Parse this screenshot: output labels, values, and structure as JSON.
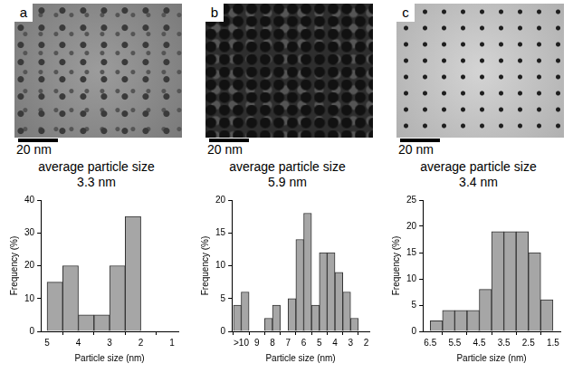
{
  "panels": [
    {
      "label": "a",
      "scale_bar": "20 nm",
      "caption": "average particle size",
      "average_size": "3.3 nm"
    },
    {
      "label": "b",
      "scale_bar": "20 nm",
      "caption": "average particle size",
      "average_size": "5.9 nm"
    },
    {
      "label": "c",
      "scale_bar": "20 nm",
      "caption": "average particle size",
      "average_size": "3.4 nm"
    }
  ],
  "chart_data": [
    {
      "type": "histogram",
      "x_label": "Particle size (nm)",
      "y_label": "Frequency (%)",
      "bins": [
        5,
        4.5,
        4,
        3.5,
        3,
        2.5,
        2
      ],
      "values": [
        15,
        20,
        5,
        5,
        20,
        35
      ],
      "color": "#a6a6a6",
      "grid": false,
      "xlim": [
        5.2,
        0.8
      ],
      "xticks": [
        5,
        4,
        3,
        2,
        1
      ],
      "ylim": [
        0,
        40
      ],
      "yticks": [
        0,
        10,
        20,
        30,
        40
      ]
    },
    {
      "type": "histogram",
      "x_label": "Particle size (nm)",
      "y_label": "Frequency (%)",
      "bins": [
        10.5,
        10,
        9.5,
        9,
        8.5,
        8,
        7.5,
        7,
        6.5,
        6,
        5.5,
        5,
        4.5,
        4,
        3.5,
        3,
        2.5
      ],
      "values": [
        4,
        6,
        0,
        0,
        2,
        4,
        0,
        5,
        14,
        18,
        4,
        12,
        12,
        9,
        6,
        2
      ],
      "color": "#a6a6a6",
      "grid": false,
      "xlim": [
        10.6,
        1.8
      ],
      "xticks": [
        {
          "value": 10,
          "label": ">10"
        },
        9,
        8,
        7,
        6,
        5,
        4,
        3,
        2
      ],
      "ylim": [
        0,
        20
      ],
      "yticks": [
        0,
        5,
        10,
        15,
        20
      ]
    },
    {
      "type": "histogram",
      "x_label": "Particle size (nm)",
      "y_label": "Frequency (%)",
      "bins": [
        6.5,
        6,
        5.5,
        5,
        4.5,
        4,
        3.5,
        3,
        2.5,
        2,
        1.5
      ],
      "values": [
        2,
        4,
        4,
        4,
        8,
        19,
        19,
        19,
        15,
        6
      ],
      "color": "#a6a6a6",
      "grid": false,
      "xlim": [
        6.8,
        1.2
      ],
      "xticks": [
        6.5,
        5.5,
        4.5,
        3.5,
        2.5,
        1.5
      ],
      "ylim": [
        0,
        25
      ],
      "yticks": [
        0,
        5,
        10,
        15,
        20,
        25
      ]
    }
  ]
}
